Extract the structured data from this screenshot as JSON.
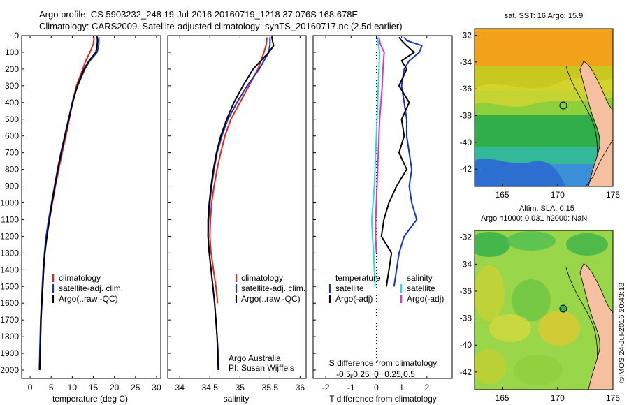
{
  "header": {
    "line1": "Argo profile: CS 5903232_248 19-Jul-2016 20160719_1218 37.076S 168.678E",
    "line2": "Climatology: CARS2009. Satellite-adjusted climatology: synTS_20160717.nc (2.5d earlier)"
  },
  "colors": {
    "climatology": "#e8231a",
    "satellite": "#1430d8",
    "argo": "#000000",
    "salinity_satellite": "#22e0e0",
    "salinity_argo": "#e030e0"
  },
  "side_labels": {
    "sst_title": "sat. SST: 16 Argo: 15.9",
    "sla_line1": "Altim. SLA: 0.15",
    "sla_line2": "Argo h1000: 0.031 h2000: NaN",
    "footer_vertical": "©IMOS 24-Jul-2016 20:43:18"
  },
  "chart_data": [
    {
      "type": "line",
      "panel": "temperature",
      "xlabel": "temperature (deg C)",
      "ylabel": "",
      "xlim": [
        -2,
        31
      ],
      "ylim": [
        2050,
        0
      ],
      "xticks": [
        0,
        5,
        10,
        15,
        20,
        25,
        30
      ],
      "yticks": [
        0,
        100,
        200,
        300,
        400,
        500,
        600,
        700,
        800,
        900,
        1000,
        1100,
        1200,
        1300,
        1400,
        1500,
        1600,
        1700,
        1800,
        1900,
        2000
      ],
      "legend": [
        "climatology",
        "satellite-adj. clim.",
        "Argo(..raw -QC)"
      ],
      "series": [
        {
          "name": "climatology",
          "color": "#e8231a",
          "depth": [
            10,
            50,
            100,
            150,
            200,
            300,
            400,
            500,
            600,
            700,
            800,
            900,
            1000,
            1100,
            1200,
            1300,
            1400,
            1500,
            1600
          ],
          "values": [
            15.2,
            15.0,
            14.2,
            13.2,
            12.5,
            11.0,
            10.0,
            9.3,
            8.5,
            7.6,
            6.8,
            6.0,
            5.3,
            4.6,
            3.9,
            3.5,
            3.2,
            3.0,
            2.9
          ]
        },
        {
          "name": "satellite-adj. clim.",
          "color": "#1430d8",
          "depth": [
            10,
            50,
            100,
            150,
            200,
            300,
            400,
            500,
            600,
            700,
            800,
            900,
            1000,
            1100,
            1200,
            1300,
            1400,
            1500,
            1600,
            1700,
            1800,
            1900,
            2000
          ],
          "values": [
            16.3,
            16.3,
            15.9,
            14.2,
            13.0,
            11.3,
            10.0,
            9.1,
            8.2,
            7.3,
            6.5,
            5.8,
            5.1,
            4.4,
            3.8,
            3.4,
            3.1,
            2.9,
            2.7,
            2.5,
            2.4,
            2.3,
            2.2
          ]
        },
        {
          "name": "Argo(..raw -QC)",
          "color": "#000000",
          "depth": [
            5,
            30,
            60,
            100,
            150,
            200,
            300,
            400,
            500,
            600,
            700,
            800,
            900,
            1000,
            1100,
            1200,
            1300,
            1400,
            1500,
            1600,
            1700,
            1800,
            1900,
            2000
          ],
          "values": [
            15.9,
            16.0,
            15.9,
            15.6,
            14.0,
            12.8,
            11.2,
            10.1,
            9.2,
            8.3,
            7.4,
            6.6,
            5.9,
            5.2,
            4.6,
            4.0,
            3.5,
            3.2,
            3.0,
            2.8,
            2.6,
            2.5,
            2.4,
            2.3
          ]
        }
      ]
    },
    {
      "type": "line",
      "panel": "salinity",
      "xlabel": "salinity",
      "xlim": [
        33.8,
        36.1
      ],
      "ylim": [
        2050,
        0
      ],
      "xticks": [
        34,
        34.5,
        35,
        35.5,
        36
      ],
      "legend": [
        "climatology",
        "satellite-adj. clim.",
        "Argo(..raw -QC)"
      ],
      "annotation": [
        "Argo Australia",
        "PI: Susan Wijffels"
      ],
      "series": [
        {
          "name": "climatology",
          "color": "#e8231a",
          "depth": [
            10,
            50,
            100,
            200,
            300,
            400,
            500,
            600,
            700,
            800,
            900,
            1000,
            1100,
            1200,
            1300,
            1400,
            1500,
            1600
          ],
          "values": [
            35.45,
            35.44,
            35.4,
            35.3,
            35.15,
            35.0,
            34.85,
            34.75,
            34.68,
            34.62,
            34.57,
            34.53,
            34.51,
            34.5,
            34.52,
            34.56,
            34.6,
            34.63
          ]
        },
        {
          "name": "satellite-adj. clim.",
          "color": "#1430d8",
          "depth": [
            10,
            50,
            100,
            200,
            300,
            400,
            500,
            600,
            700,
            800,
            900,
            1000,
            1100,
            1200,
            1300,
            1400,
            1500,
            1600,
            1700,
            1800,
            1900,
            2000
          ],
          "values": [
            35.5,
            35.5,
            35.48,
            35.32,
            35.12,
            34.95,
            34.8,
            34.7,
            34.62,
            34.57,
            34.53,
            34.5,
            34.48,
            34.47,
            34.49,
            34.52,
            34.55,
            34.58,
            34.6,
            34.62,
            34.64,
            34.65
          ]
        },
        {
          "name": "Argo(..raw -QC)",
          "color": "#000000",
          "depth": [
            5,
            30,
            60,
            100,
            150,
            200,
            300,
            400,
            500,
            600,
            700,
            800,
            900,
            1000,
            1100,
            1200,
            1300,
            1400,
            1500,
            1600,
            1700,
            1800,
            1900,
            2000
          ],
          "values": [
            35.53,
            35.54,
            35.56,
            35.48,
            35.35,
            35.22,
            35.05,
            34.9,
            34.78,
            34.68,
            34.61,
            34.56,
            34.52,
            34.49,
            34.47,
            34.47,
            34.49,
            34.52,
            34.55,
            34.58,
            34.6,
            34.62,
            34.63,
            34.64
          ]
        }
      ]
    },
    {
      "type": "line",
      "panel": "difference",
      "xlabel": "T difference from climatology",
      "xlabel_top": "S difference from climatology",
      "xlim": [
        -2.5,
        3.0
      ],
      "ylim": [
        2050,
        0
      ],
      "xticks": [
        -2,
        -1,
        0,
        1,
        2
      ],
      "xticks_top": [
        "-0.5",
        "-0.25",
        "0",
        "0.25",
        "0.5"
      ],
      "legend_temperature_title": "temperature",
      "legend_salinity_title": "salinity",
      "legend_temperature": [
        "satellite",
        "Argo(-adj)"
      ],
      "legend_salinity": [
        "satellite",
        "Argo(-adj)"
      ],
      "series": [
        {
          "name": "temperature satellite",
          "color": "#1430d8",
          "depth": [
            10,
            30,
            60,
            100,
            150,
            200,
            300,
            400,
            500,
            600,
            700,
            800,
            900,
            1000,
            1100,
            1200,
            1300,
            1400,
            1500
          ],
          "values": [
            1.1,
            1.2,
            1.8,
            1.7,
            1.3,
            1.1,
            1.0,
            1.1,
            1.2,
            1.2,
            1.3,
            1.4,
            1.3,
            1.4,
            1.6,
            1.1,
            0.9,
            0.8,
            0.7
          ]
        },
        {
          "name": "temperature Argo(-adj)",
          "color": "#000000",
          "depth": [
            10,
            30,
            60,
            100,
            150,
            200,
            300,
            400,
            500,
            600,
            700,
            800,
            900,
            1000,
            1100,
            1200,
            1300,
            1400,
            1500
          ],
          "values": [
            0.9,
            1.0,
            1.2,
            1.5,
            1.0,
            1.2,
            0.9,
            1.3,
            1.0,
            1.1,
            0.9,
            1.2,
            0.8,
            0.5,
            0.3,
            0.2,
            0.6,
            0.5,
            0.4
          ]
        },
        {
          "name": "salinity satellite",
          "color": "#22e0e0",
          "depth": [
            10,
            50,
            100,
            200,
            300,
            400,
            500,
            600,
            700,
            800,
            900,
            1000,
            1100,
            1200,
            1300,
            1400,
            1500
          ],
          "values": [
            0.02,
            0.03,
            0.05,
            0.04,
            0.03,
            0.02,
            0.01,
            0.0,
            -0.01,
            -0.02,
            -0.03,
            -0.05,
            -0.07,
            -0.06,
            -0.04,
            -0.03,
            -0.02
          ]
        },
        {
          "name": "salinity Argo(-adj)",
          "color": "#e030e0",
          "depth": [
            10,
            50,
            100,
            200,
            300,
            400,
            500,
            600,
            700,
            800,
            900,
            1000,
            1100,
            1200,
            1300
          ],
          "values": [
            0.04,
            0.06,
            0.12,
            0.1,
            0.09,
            0.07,
            0.05,
            0.04,
            0.03,
            0.02,
            0.01,
            0.0,
            -0.01,
            -0.01,
            0.0
          ]
        }
      ]
    },
    {
      "type": "heatmap",
      "panel": "sst-map",
      "title": "sat. SST: 16 Argo: 15.9",
      "xlim": [
        162.5,
        175
      ],
      "ylim": [
        -43.3,
        -31.5
      ],
      "xticks": [
        165,
        170,
        175
      ],
      "yticks": [
        -32,
        -34,
        -36,
        -38,
        -40,
        -42
      ],
      "marker": {
        "lon": 168.678,
        "lat": -37.076
      }
    },
    {
      "type": "heatmap",
      "panel": "sla-map",
      "title": "Altim. SLA: 0.15",
      "subtitle": "Argo h1000: 0.031 h2000: NaN",
      "xlim": [
        162.5,
        175
      ],
      "ylim": [
        -43.3,
        -31.5
      ],
      "xticks": [
        165,
        170,
        175
      ],
      "yticks": [
        -32,
        -34,
        -36,
        -38,
        -40,
        -42
      ],
      "marker": {
        "lon": 168.678,
        "lat": -37.076
      }
    }
  ]
}
